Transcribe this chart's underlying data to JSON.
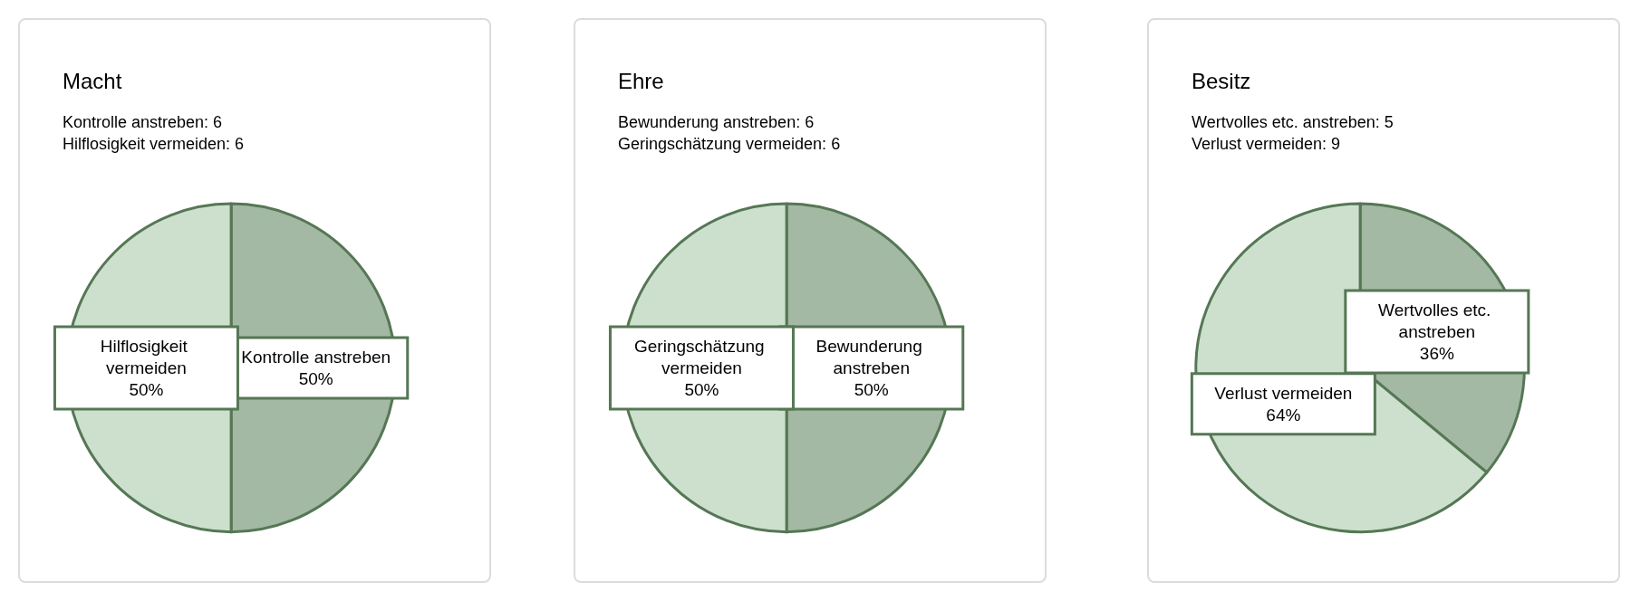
{
  "chart_data": [
    {
      "type": "pie",
      "title": "Macht",
      "subtitle": "Kontrolle anstreben: 6\nHilflosigkeit vermeiden: 6",
      "categories": [
        "Kontrolle anstreben",
        "Hilflosigkeit vermeiden"
      ],
      "values": [
        50,
        50
      ],
      "value_labels": [
        "50%",
        "50%"
      ],
      "colors": [
        "#a3b9a3",
        "#cde0cd"
      ]
    },
    {
      "type": "pie",
      "title": "Ehre",
      "subtitle": "Bewunderung anstreben: 6\nGeringschätzung vermeiden: 6",
      "categories": [
        "Bewunderung anstreben",
        "Geringschätzung vermeiden"
      ],
      "values": [
        50,
        50
      ],
      "value_labels": [
        "50%",
        "50%"
      ],
      "colors": [
        "#a3b9a3",
        "#cde0cd"
      ]
    },
    {
      "type": "pie",
      "title": "Besitz",
      "subtitle": "Wertvolles etc. anstreben: 5\nVerlust vermeiden: 9",
      "categories": [
        "Wertvolles etc. anstreben",
        "Verlust vermeiden"
      ],
      "values": [
        36,
        64
      ],
      "value_labels": [
        "36%",
        "64%"
      ],
      "colors": [
        "#a3b9a3",
        "#cde0cd"
      ]
    }
  ]
}
